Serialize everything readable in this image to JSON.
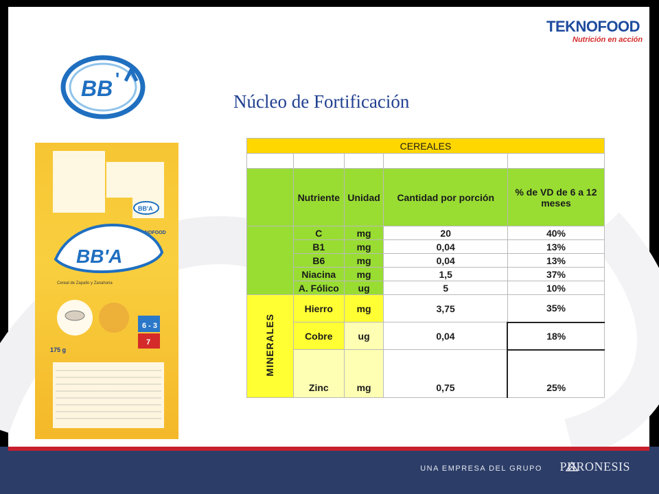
{
  "slide": {
    "title": "Núcleo de Fortificación"
  },
  "logos": {
    "brand": "BB'A",
    "company_name": "TEKNOFOOD",
    "company_tagline": "Nutrición en acción"
  },
  "footer": {
    "group_text": "UNA EMPRESA DEL GRUPO",
    "group_name": "PHRONESIS"
  },
  "table": {
    "section": "CEREALES",
    "headers": [
      "Nutriente",
      "Unidad",
      "Cantidad por porción",
      "% de VD de 6 a 12 meses"
    ],
    "vitamins": [
      {
        "nutriente": "C",
        "unidad": "mg",
        "cantidad": "20",
        "vd": "40%"
      },
      {
        "nutriente": "B1",
        "unidad": "mg",
        "cantidad": "0,04",
        "vd": "13%"
      },
      {
        "nutriente": "B6",
        "unidad": "mg",
        "cantidad": "0,04",
        "vd": "13%"
      },
      {
        "nutriente": "Niacina",
        "unidad": "mg",
        "cantidad": "1,5",
        "vd": "37%"
      },
      {
        "nutriente": "A. Fólico",
        "unidad": "ug",
        "cantidad": "5",
        "vd": "10%"
      }
    ],
    "minerals_label": "MINERALES",
    "minerals": [
      {
        "nutriente": "Hierro",
        "unidad": "mg",
        "cantidad": "3,75",
        "vd": "35%"
      },
      {
        "nutriente": "Cobre",
        "unidad": "ug",
        "cantidad": "0,04",
        "vd": "18%"
      },
      {
        "nutriente": "Zinc",
        "unidad": "mg",
        "cantidad": "0,75",
        "vd": "25%"
      }
    ]
  },
  "package": {
    "brand": "BB'A",
    "logo_small": "TEKNOFOOD",
    "flavor": "Cereal de Zapallo y Zanahoria",
    "age": "6 - 3",
    "portions": "7",
    "weight": "175 g"
  }
}
